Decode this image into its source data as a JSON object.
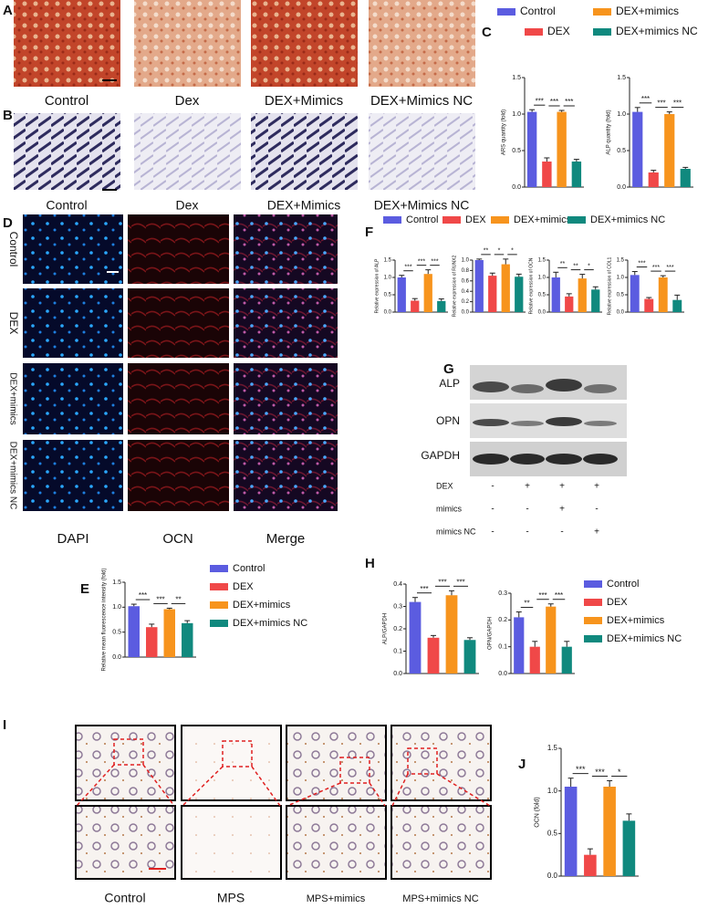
{
  "panels": [
    "A",
    "B",
    "C",
    "D",
    "E",
    "F",
    "G",
    "H",
    "I",
    "J"
  ],
  "a_labels": [
    "Control",
    "Dex",
    "DEX+Mimics",
    "DEX+Mimics NC"
  ],
  "b_labels": [
    "Control",
    "Dex",
    "DEX+Mimics",
    "DEX+Mimics NC"
  ],
  "group_colors": [
    "#5b5ce0",
    "#f04848",
    "#f7941d",
    "#10897e"
  ],
  "legend": {
    "C": [
      "Control",
      "DEX",
      "DEX+mimics",
      "DEX+mimics NC"
    ],
    "E": [
      "Control",
      "DEX",
      "DEX+mimics",
      "DEX+mimics NC"
    ],
    "F": [
      "Control",
      "DEX",
      "DEX+mimics",
      "DEX+mimics NC"
    ],
    "H": [
      "Control",
      "DEX",
      "DEX+mimics",
      "DEX+mimics NC"
    ]
  },
  "d_rows": [
    "Control",
    "DEX",
    "DEX+mimics",
    "DEX+mimics NC"
  ],
  "d_columns": [
    "DAPI",
    "OCN",
    "Merge"
  ],
  "d_column_colors": [
    "#1a8cff",
    "#e02020",
    "#1a8cc8"
  ],
  "g_bands": [
    "ALP",
    "OPN",
    "GAPDH"
  ],
  "g_treatments": [
    {
      "label": "DEX",
      "signs": [
        "-",
        "+",
        "+",
        "+"
      ]
    },
    {
      "label": "mimics",
      "signs": [
        "-",
        "-",
        "+",
        "-"
      ]
    },
    {
      "label": "mimics NC",
      "signs": [
        "-",
        "-",
        "-",
        "+"
      ]
    }
  ],
  "i_labels": [
    "Control",
    "MPS",
    "MPS+mimics",
    "MPS+mimics NC"
  ],
  "chart_data": [
    {
      "type": "bar",
      "ylabel": "ARS quantity (fold)",
      "values": [
        1.03,
        0.35,
        1.03,
        0.35
      ],
      "errors": [
        0.03,
        0.05,
        0.02,
        0.03
      ],
      "ylim": [
        0,
        1.5
      ],
      "yticks": [
        {
          "value": 0,
          "label": "0.0"
        },
        {
          "value": 0.5,
          "label": "0.5"
        },
        {
          "value": 1,
          "label": "1.0"
        },
        {
          "value": 1.5,
          "label": "1.5"
        }
      ],
      "significance": [
        "***",
        "***",
        "***"
      ]
    },
    {
      "type": "bar",
      "ylabel": "ALP quantity (fold)",
      "values": [
        1.03,
        0.2,
        1.0,
        0.25
      ],
      "errors": [
        0.06,
        0.03,
        0.03,
        0.02
      ],
      "ylim": [
        0,
        1.5
      ],
      "yticks": [
        {
          "value": 0,
          "label": "0.0"
        },
        {
          "value": 0.5,
          "label": "0.5"
        },
        {
          "value": 1,
          "label": "1.0"
        },
        {
          "value": 1.5,
          "label": "1.5"
        }
      ],
      "significance": [
        "***",
        "***",
        "***"
      ]
    },
    {
      "type": "bar",
      "ylabel": "Relative expression of ALP",
      "values": [
        1.0,
        0.33,
        1.1,
        0.32
      ],
      "errors": [
        0.06,
        0.06,
        0.12,
        0.06
      ],
      "ylim": [
        0,
        1.5
      ],
      "yticks": [
        {
          "value": 0,
          "label": "0.0"
        },
        {
          "value": 0.5,
          "label": "0.5"
        },
        {
          "value": 1,
          "label": "1.0"
        },
        {
          "value": 1.5,
          "label": "1.5"
        }
      ],
      "significance": [
        "***",
        "***",
        "***"
      ]
    },
    {
      "type": "bar",
      "ylabel": "Relative expression of RUNX2",
      "values": [
        1.0,
        0.7,
        0.92,
        0.68
      ],
      "errors": [
        0.02,
        0.05,
        0.1,
        0.05
      ],
      "ylim": [
        0,
        1
      ],
      "yticks": [
        {
          "value": 0,
          "label": "0.0"
        },
        {
          "value": 0.2,
          "label": "0.2"
        },
        {
          "value": 0.4,
          "label": "0.4"
        },
        {
          "value": 0.6,
          "label": "0.6"
        },
        {
          "value": 0.8,
          "label": "0.8"
        },
        {
          "value": 1,
          "label": "1.0"
        }
      ],
      "significance": [
        "**",
        "*",
        "*"
      ]
    },
    {
      "type": "bar",
      "ylabel": "Relative expression of OCN",
      "values": [
        1.0,
        0.45,
        0.97,
        0.65
      ],
      "errors": [
        0.15,
        0.08,
        0.12,
        0.08
      ],
      "ylim": [
        0,
        1.5
      ],
      "yticks": [
        {
          "value": 0,
          "label": "0.0"
        },
        {
          "value": 0.5,
          "label": "0.5"
        },
        {
          "value": 1,
          "label": "1.0"
        },
        {
          "value": 1.5,
          "label": "1.5"
        }
      ],
      "significance": [
        "**",
        "**",
        "*"
      ]
    },
    {
      "type": "bar",
      "ylabel": "Relative expression of COL1",
      "values": [
        1.07,
        0.38,
        1.0,
        0.35
      ],
      "errors": [
        0.1,
        0.04,
        0.05,
        0.14
      ],
      "ylim": [
        0,
        1.5
      ],
      "yticks": [
        {
          "value": 0,
          "label": "0.0"
        },
        {
          "value": 0.5,
          "label": "0.5"
        },
        {
          "value": 1,
          "label": "1.0"
        },
        {
          "value": 1.5,
          "label": "1.5"
        }
      ],
      "significance": [
        "***",
        "***",
        "***"
      ]
    },
    {
      "type": "bar",
      "ylabel": "Relative mean fluorescence intensity (fold)",
      "values": [
        1.02,
        0.6,
        0.96,
        0.68
      ],
      "errors": [
        0.04,
        0.06,
        0.02,
        0.05
      ],
      "ylim": [
        0,
        1.5
      ],
      "yticks": [
        {
          "value": 0,
          "label": "0.0"
        },
        {
          "value": 0.5,
          "label": "0.5"
        },
        {
          "value": 1,
          "label": "1.0"
        },
        {
          "value": 1.5,
          "label": "1.5"
        }
      ],
      "significance": [
        "***",
        "***",
        "**"
      ]
    },
    {
      "type": "bar",
      "ylabel": "ALP/GAPDH",
      "values": [
        0.32,
        0.16,
        0.35,
        0.15
      ],
      "errors": [
        0.02,
        0.01,
        0.02,
        0.01
      ],
      "ylim": [
        0,
        0.4
      ],
      "yticks": [
        {
          "value": 0,
          "label": "0.0"
        },
        {
          "value": 0.1,
          "label": "0.1"
        },
        {
          "value": 0.2,
          "label": "0.2"
        },
        {
          "value": 0.3,
          "label": "0.3"
        },
        {
          "value": 0.4,
          "label": "0.4"
        }
      ],
      "significance": [
        "***",
        "***",
        "***"
      ]
    },
    {
      "type": "bar",
      "ylabel": "OPN/GAPDH",
      "values": [
        0.21,
        0.1,
        0.25,
        0.1
      ],
      "errors": [
        0.02,
        0.02,
        0.01,
        0.02
      ],
      "ylim": [
        0,
        0.3
      ],
      "yticks": [
        {
          "value": 0,
          "label": "0.0"
        },
        {
          "value": 0.1,
          "label": "0.1"
        },
        {
          "value": 0.2,
          "label": "0.2"
        },
        {
          "value": 0.3,
          "label": "0.3"
        }
      ],
      "significance": [
        "**",
        "***",
        "***"
      ]
    },
    {
      "type": "bar",
      "ylabel": "OCN (fold)",
      "values": [
        1.05,
        0.25,
        1.05,
        0.65
      ],
      "errors": [
        0.1,
        0.07,
        0.07,
        0.08
      ],
      "ylim": [
        0,
        1.5
      ],
      "yticks": [
        {
          "value": 0,
          "label": "0.0"
        },
        {
          "value": 0.5,
          "label": "0.5"
        },
        {
          "value": 1,
          "label": "1.0"
        },
        {
          "value": 1.5,
          "label": "1.5"
        }
      ],
      "significance": [
        "***",
        "***",
        "*"
      ]
    }
  ]
}
